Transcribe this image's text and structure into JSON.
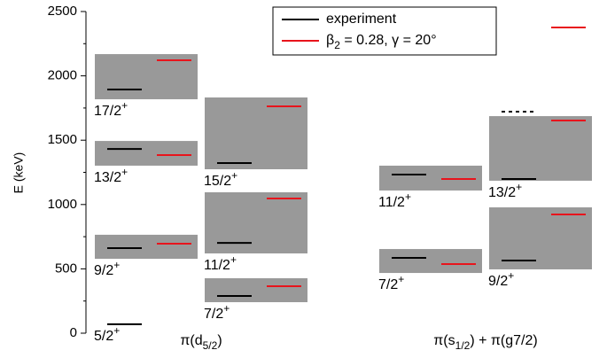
{
  "chart_data": {
    "type": "level-scheme",
    "ylabel": "E (keV)",
    "ylim": [
      0,
      2500
    ],
    "yticks": [
      0,
      500,
      1000,
      1500,
      2000,
      2500
    ],
    "band_color": "#999999",
    "series": [
      {
        "name": [
          "experiment"
        ],
        "color": "#000000"
      },
      {
        "name": [
          "β",
          "2",
          " = 0.28,  γ = 20°"
        ],
        "color": "#e8141c"
      }
    ],
    "groups": [
      {
        "label": [
          "π(d",
          "5/2",
          ")"
        ],
        "columns": [
          {
            "levels": [
              {
                "label": [
                  "5/2",
                  "+"
                ],
                "experiment": 70,
                "theory": null,
                "band": null
              },
              {
                "label": [
                  "9/2",
                  "+"
                ],
                "experiment": 661,
                "theory": 696,
                "band": [
                  578,
                  765
                ]
              },
              {
                "label": [
                  "13/2",
                  "+"
                ],
                "experiment": 1432,
                "theory": 1384,
                "band": [
                  1302,
                  1494
                ]
              },
              {
                "label": [
                  "17/2",
                  "+"
                ],
                "experiment": 1894,
                "theory": 2121,
                "band": [
                  1818,
                  2169
                ]
              }
            ]
          },
          {
            "levels": [
              {
                "label": [
                  "7/2",
                  "+"
                ],
                "experiment": 289,
                "theory": 365,
                "band": [
                  241,
                  427
                ]
              },
              {
                "label": [
                  "11/2",
                  "+"
                ],
                "experiment": 702,
                "theory": 1047,
                "band": [
                  620,
                  1095
                ]
              },
              {
                "label": [
                  "15/2",
                  "+"
                ],
                "experiment": 1322,
                "theory": 1763,
                "band": [
                  1274,
                  1832
                ]
              }
            ]
          }
        ]
      },
      {
        "label": [
          "π(s",
          "1/2",
          ") + π(g7/2)"
        ],
        "columns": [
          {
            "levels": [
              {
                "label": [
                  "7/2",
                  "+"
                ],
                "experiment": 585,
                "theory": 537,
                "band": [
                  468,
                  654
                ]
              },
              {
                "label": [
                  "11/2",
                  "+"
                ],
                "experiment": 1233,
                "theory": 1198,
                "band": [
                  1109,
                  1302
                ]
              }
            ]
          },
          {
            "levels": [
              {
                "label": [
                  "9/2",
                  "+"
                ],
                "experiment": 565,
                "theory": 923,
                "band": [
                  496,
                  978
                ]
              },
              {
                "label": [
                  "13/2",
                  "+"
                ],
                "experiment": 1198,
                "theory": 1653,
                "band": [
                  1185,
                  1687
                ]
              },
              {
                "label": null,
                "experiment": 1722,
                "theory": 2376,
                "band": null,
                "dashed": true
              }
            ]
          }
        ]
      }
    ]
  }
}
